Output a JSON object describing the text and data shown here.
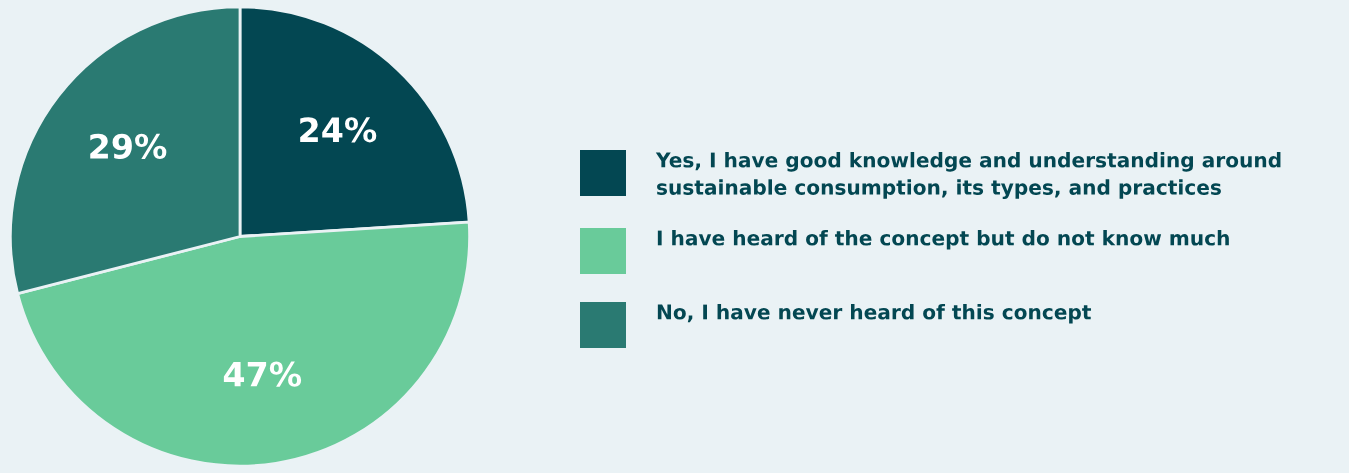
{
  "chart_data": {
    "type": "pie",
    "categories": [
      "Yes, I have good knowledge and understanding around sustainable consumption, its types, and practices",
      "I have heard of the concept but do not know much",
      "No, I have never heard of this concept"
    ],
    "values": [
      24,
      47,
      29
    ],
    "colors": [
      "#034752",
      "#69cb9a",
      "#2a7a72"
    ],
    "value_labels": [
      "24%",
      "47%",
      "29%"
    ],
    "legend": "right"
  }
}
